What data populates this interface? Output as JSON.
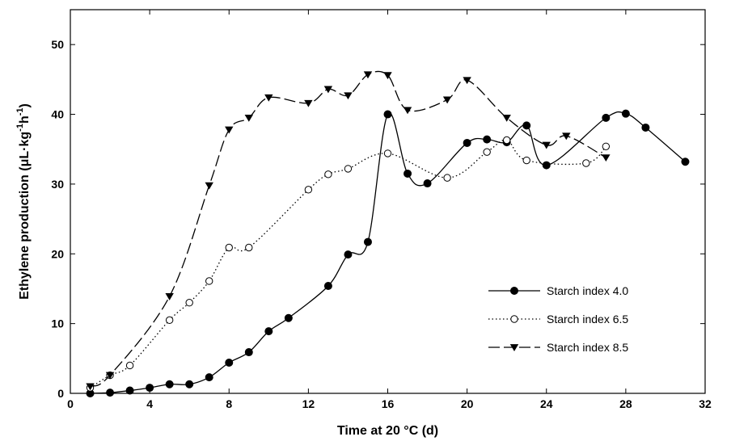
{
  "chart_data": {
    "type": "line",
    "xlabel": "Time at 20 °C (d)",
    "ylabel_parts": [
      "Ethylene production (μL·kg",
      "-1",
      "h",
      "-1",
      ")"
    ],
    "xlim": [
      0,
      32
    ],
    "ylim": [
      0,
      55
    ],
    "xticks": [
      0,
      4,
      8,
      12,
      16,
      20,
      24,
      28,
      32
    ],
    "yticks": [
      0,
      10,
      20,
      30,
      40,
      50
    ],
    "grid": false,
    "legend_position": "bottom-right",
    "series": [
      {
        "name": "Starch index 4.0",
        "line_style": "solid",
        "marker": "filled-circle",
        "x": [
          1,
          2,
          3,
          4,
          5,
          6,
          7,
          8,
          9,
          10,
          11,
          13,
          14,
          15,
          16,
          17,
          18,
          20,
          21,
          22,
          23,
          24,
          27,
          28,
          29,
          31
        ],
        "y": [
          0.0,
          0.1,
          0.4,
          0.8,
          1.3,
          1.3,
          2.3,
          4.4,
          5.9,
          8.9,
          10.8,
          15.4,
          19.9,
          21.7,
          40.0,
          31.5,
          30.1,
          35.9,
          36.4,
          36.0,
          38.4,
          32.7,
          39.5,
          40.1,
          38.1,
          33.2
        ]
      },
      {
        "name": "Starch index 6.5",
        "line_style": "dotted",
        "marker": "open-circle",
        "x": [
          1,
          2,
          3,
          5,
          6,
          7,
          8,
          9,
          12,
          13,
          14,
          16,
          19,
          21,
          22,
          23,
          26,
          27
        ],
        "y": [
          0.8,
          2.6,
          4.0,
          10.5,
          13.0,
          16.1,
          20.9,
          20.9,
          29.2,
          31.4,
          32.2,
          34.4,
          30.9,
          34.6,
          36.3,
          33.4,
          33.0,
          35.4
        ]
      },
      {
        "name": "Starch index 8.5",
        "line_style": "dashed",
        "marker": "filled-triangle-down",
        "x": [
          1,
          2,
          5,
          7,
          8,
          9,
          10,
          12,
          13,
          14,
          15,
          16,
          17,
          19,
          20,
          22,
          24,
          25,
          27
        ],
        "y": [
          1.0,
          2.6,
          13.9,
          29.8,
          37.8,
          39.5,
          42.4,
          41.6,
          43.6,
          42.7,
          45.7,
          45.6,
          40.6,
          42.1,
          44.9,
          39.5,
          35.6,
          36.9,
          33.8
        ]
      }
    ]
  }
}
